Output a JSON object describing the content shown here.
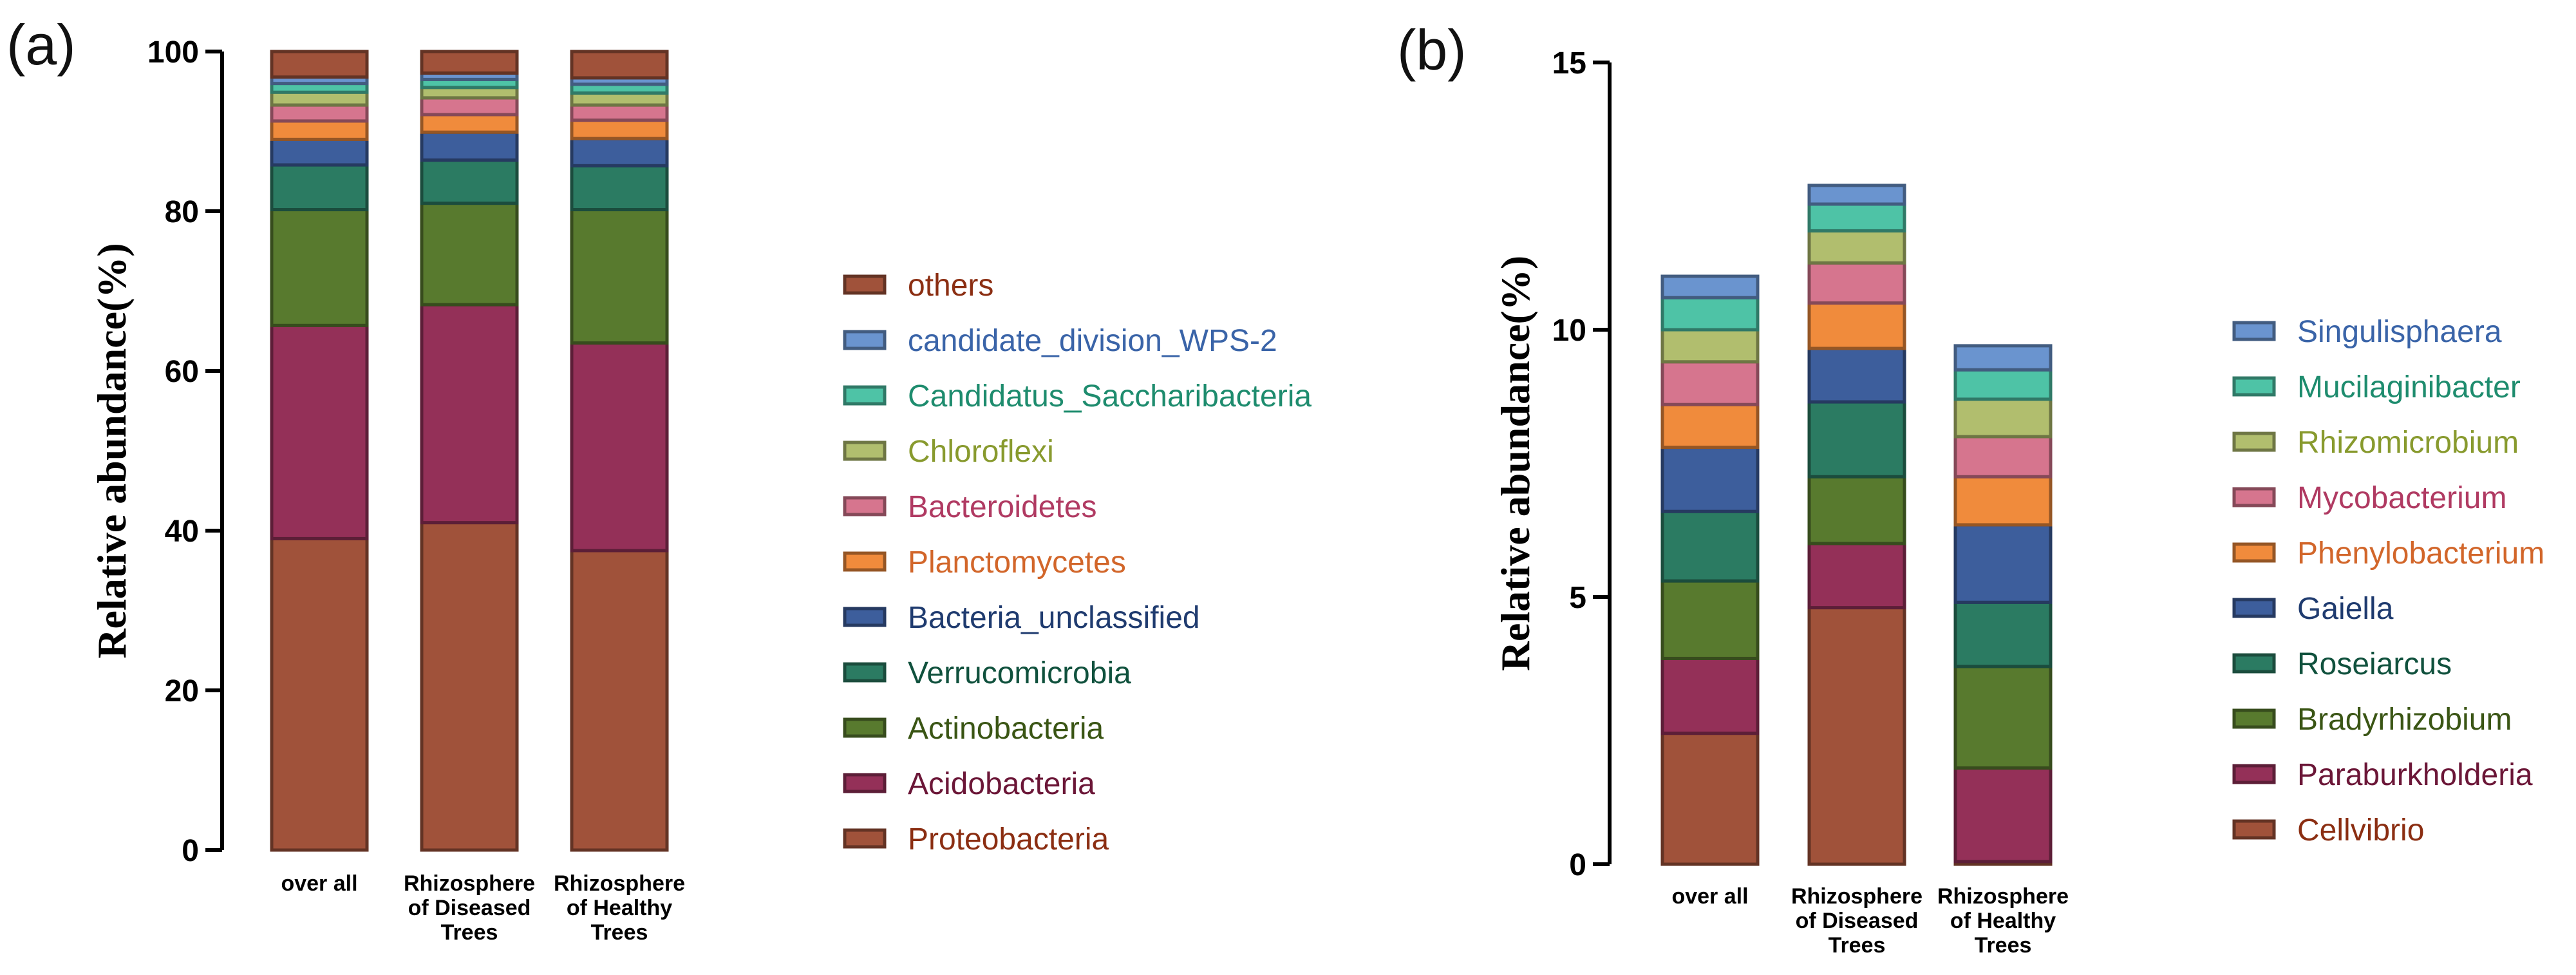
{
  "chart_data": [
    {
      "panel": "(a)",
      "type": "bar",
      "stacked": true,
      "ylabel": "Relative abundance(%)",
      "ylim": [
        0,
        100
      ],
      "yticks": [
        "0",
        "20",
        "40",
        "60",
        "80",
        "100"
      ],
      "categories": [
        [
          "over all"
        ],
        [
          "Rhizosphere",
          "of Diseased",
          "Trees"
        ],
        [
          "Rhizosphere",
          "of Healthy",
          "Trees"
        ]
      ],
      "series": [
        {
          "name": "Proteobacteria",
          "color": "#A0523A",
          "text_color": "#8B2E12",
          "values": [
            39.0,
            41.0,
            37.5
          ]
        },
        {
          "name": "Acidobacteria",
          "color": "#943058",
          "text_color": "#6B1637",
          "values": [
            26.7,
            27.3,
            26.0
          ]
        },
        {
          "name": "Actinobacteria",
          "color": "#587A2E",
          "text_color": "#3A5514",
          "values": [
            14.5,
            12.7,
            16.7
          ]
        },
        {
          "name": "Verrucomicrobia",
          "color": "#2B7B62",
          "text_color": "#10513D",
          "values": [
            5.6,
            5.4,
            5.5
          ]
        },
        {
          "name": "Bacteria_unclassified",
          "color": "#3D5E9C",
          "text_color": "#1F3B6F",
          "values": [
            3.2,
            3.5,
            3.4
          ]
        },
        {
          "name": "Planctomycetes",
          "color": "#F08B3C",
          "text_color": "#D2662A",
          "values": [
            2.3,
            2.2,
            2.3
          ]
        },
        {
          "name": "Bacteroidetes",
          "color": "#D6758E",
          "text_color": "#B03A62",
          "values": [
            2.0,
            2.1,
            1.9
          ]
        },
        {
          "name": "Chloroflexi",
          "color": "#B1BE6E",
          "text_color": "#889A2E",
          "values": [
            1.6,
            1.3,
            1.5
          ]
        },
        {
          "name": "Candidatus_Saccharibacteria",
          "color": "#4EC3A6",
          "text_color": "#1E8C6E",
          "values": [
            1.1,
            1.0,
            1.1
          ]
        },
        {
          "name": "candidate_division_WPS-2",
          "color": "#6A94CF",
          "text_color": "#3A64A8",
          "values": [
            0.8,
            0.8,
            0.8
          ]
        },
        {
          "name": "others",
          "color": "#A0523A",
          "text_color": "#8B2E12",
          "values": [
            3.2,
            2.7,
            3.3
          ]
        }
      ]
    },
    {
      "panel": "(b)",
      "type": "bar",
      "stacked": true,
      "ylabel": "Relative abundance(%)",
      "ylim": [
        0,
        15
      ],
      "yticks": [
        "0",
        "5",
        "10",
        "15"
      ],
      "categories": [
        [
          "over all"
        ],
        [
          "Rhizosphere",
          "of Diseased",
          "Trees"
        ],
        [
          "Rhizosphere",
          "of Healthy",
          "Trees"
        ]
      ],
      "series": [
        {
          "name": "Cellvibrio",
          "color": "#A0523A",
          "text_color": "#8B2E12",
          "values": [
            2.45,
            4.8,
            0.05
          ]
        },
        {
          "name": "Paraburkholderia",
          "color": "#943058",
          "text_color": "#6B1637",
          "values": [
            1.4,
            1.2,
            1.75
          ]
        },
        {
          "name": "Bradyrhizobium",
          "color": "#587A2E",
          "text_color": "#3A5514",
          "values": [
            1.45,
            1.25,
            1.9
          ]
        },
        {
          "name": "Roseiarcus",
          "color": "#2B7B62",
          "text_color": "#10513D",
          "values": [
            1.3,
            1.4,
            1.2
          ]
        },
        {
          "name": "Gaiella",
          "color": "#3D5E9C",
          "text_color": "#1F3B6F",
          "values": [
            1.2,
            1.0,
            1.45
          ]
        },
        {
          "name": "Phenylobacterium",
          "color": "#F08B3C",
          "text_color": "#D2662A",
          "values": [
            0.8,
            0.85,
            0.9
          ]
        },
        {
          "name": "Mycobacterium",
          "color": "#D6758E",
          "text_color": "#B03A62",
          "values": [
            0.8,
            0.75,
            0.75
          ]
        },
        {
          "name": "Rhizomicrobium",
          "color": "#B1BE6E",
          "text_color": "#889A2E",
          "values": [
            0.6,
            0.6,
            0.7
          ]
        },
        {
          "name": "Mucilaginibacter",
          "color": "#4EC3A6",
          "text_color": "#1E8C6E",
          "values": [
            0.6,
            0.5,
            0.55
          ]
        },
        {
          "name": "Singulisphaera",
          "color": "#6A94CF",
          "text_color": "#3A64A8",
          "values": [
            0.4,
            0.35,
            0.45
          ]
        }
      ]
    }
  ]
}
